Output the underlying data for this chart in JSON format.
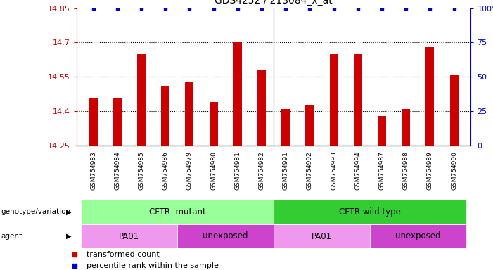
{
  "title": "GDS4252 / 213084_x_at",
  "samples": [
    "GSM754983",
    "GSM754984",
    "GSM754985",
    "GSM754986",
    "GSM754979",
    "GSM754980",
    "GSM754981",
    "GSM754982",
    "GSM754991",
    "GSM754992",
    "GSM754993",
    "GSM754994",
    "GSM754987",
    "GSM754988",
    "GSM754989",
    "GSM754990"
  ],
  "bar_values": [
    14.46,
    14.46,
    14.65,
    14.51,
    14.53,
    14.44,
    14.7,
    14.58,
    14.41,
    14.43,
    14.65,
    14.65,
    14.38,
    14.41,
    14.68,
    14.56
  ],
  "percentile_values": [
    99.5,
    99.5,
    99.5,
    99.5,
    99.5,
    99.5,
    99.5,
    99.5,
    99.5,
    99.5,
    99.5,
    99.5,
    99.5,
    99.5,
    99.5,
    99.5
  ],
  "ylim_left": [
    14.25,
    14.85
  ],
  "ylim_right": [
    0,
    100
  ],
  "yticks_left": [
    14.25,
    14.4,
    14.55,
    14.7,
    14.85
  ],
  "yticks_right": [
    0,
    25,
    50,
    75,
    100
  ],
  "ytick_labels_right": [
    "0",
    "25",
    "50",
    "75",
    "100%"
  ],
  "bar_color": "#cc0000",
  "percentile_color": "#0000cc",
  "background_color": "#ffffff",
  "genotype_groups": [
    {
      "label": "CFTR  mutant",
      "start": 0,
      "end": 7,
      "color": "#99ff99"
    },
    {
      "label": "CFTR wild type",
      "start": 8,
      "end": 15,
      "color": "#33cc33"
    }
  ],
  "agent_groups": [
    {
      "label": "PA01",
      "start": 0,
      "end": 3,
      "color": "#ee99ee"
    },
    {
      "label": "unexposed",
      "start": 4,
      "end": 7,
      "color": "#cc44cc"
    },
    {
      "label": "PA01",
      "start": 8,
      "end": 11,
      "color": "#ee99ee"
    },
    {
      "label": "unexposed",
      "start": 12,
      "end": 15,
      "color": "#cc44cc"
    }
  ],
  "legend_items": [
    {
      "label": "transformed count",
      "color": "#cc0000"
    },
    {
      "label": "percentile rank within the sample",
      "color": "#0000cc"
    }
  ],
  "genotype_label": "genotype/variation",
  "agent_label": "agent",
  "left_axis_color": "#cc0000",
  "right_axis_color": "#0000cc",
  "separator_index": 7.5
}
